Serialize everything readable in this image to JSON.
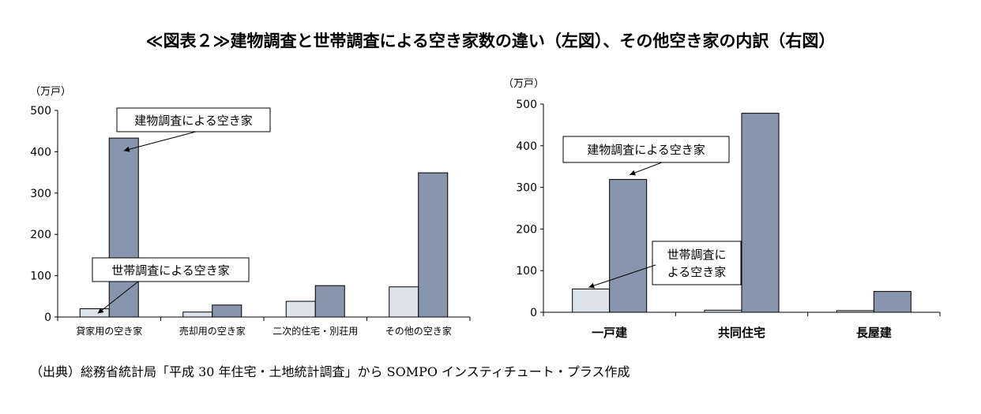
{
  "title": "≪図表２≫建物調査と世帯調査による空き家数の違い（左図）、その他空き家の内訳（右図）",
  "source": "（出典）総務省統計局「平成 30 年住宅・土地統計調査」から SOMPO インスティチュート・プラス作成",
  "colors": {
    "light_bar": "#dde3eb",
    "dark_bar": "#8796ad",
    "stroke": "#000000"
  },
  "chart_data": [
    {
      "type": "bar",
      "unit_label": "（万戸）",
      "categories": [
        "貸家用の空き家",
        "売却用の空き家",
        "二次的住宅・別荘用",
        "その他の空き家"
      ],
      "ylim": [
        0,
        500
      ],
      "yticks": [
        "0",
        "100",
        "200",
        "300",
        "400",
        "500"
      ],
      "series": [
        {
          "name": "世帯調査による空き家",
          "values": [
            20,
            12,
            38,
            73
          ]
        },
        {
          "name": "建物調査による空き家",
          "values": [
            433,
            29,
            76,
            349
          ]
        }
      ],
      "grid": false,
      "legend": "callouts"
    },
    {
      "type": "bar",
      "unit_label": "（万戸）",
      "categories": [
        "一戸建",
        "共同住宅",
        "長屋建"
      ],
      "ylim": [
        0,
        500
      ],
      "yticks": [
        "0",
        "100",
        "200",
        "300",
        "400",
        "500"
      ],
      "series": [
        {
          "name": "世帯調査による空き家",
          "values": [
            56,
            5,
            4
          ]
        },
        {
          "name": "建物調査による空き家",
          "values": [
            319,
            478,
            50
          ]
        }
      ],
      "series_callout_labels": [
        [
          "世帯調査に",
          "よる空き家"
        ],
        [
          "建物調査による空き家"
        ]
      ],
      "grid": false,
      "legend": "callouts"
    }
  ]
}
